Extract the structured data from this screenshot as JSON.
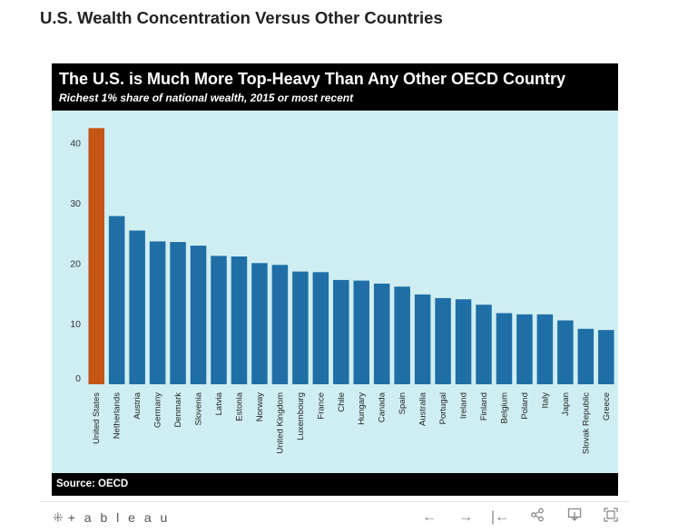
{
  "page_heading": "U.S. Wealth Concentration Versus Other Countries",
  "viz": {
    "title": "The U.S. is Much More Top-Heavy Than Any Other OECD Country",
    "subtitle": "Richest 1% share of national wealth, 2015 or most recent",
    "source": "Source: OECD"
  },
  "toolbar": {
    "logo": "+ a b l e a u",
    "logo_plus": "⁜",
    "icons": [
      "tableau-logo-icon",
      "undo-icon",
      "redo-icon",
      "revert-icon",
      "share-icon",
      "download-icon",
      "fullscreen-icon"
    ]
  },
  "colors": {
    "background": "#cfeef2",
    "bar": "#1f6fa6",
    "highlight": "#c45514",
    "header": "#000000"
  },
  "chart_data": {
    "type": "bar",
    "title": "The U.S. is Much More Top-Heavy Than Any Other OECD Country",
    "subtitle": "Richest 1% share of national wealth, 2015 or most recent",
    "xlabel": "",
    "ylabel": "",
    "ylim": [
      0,
      43
    ],
    "yticks": [
      0,
      10,
      20,
      30,
      40
    ],
    "grid": false,
    "categories": [
      "United States",
      "Netherlands",
      "Austria",
      "Germany",
      "Denmark",
      "Slovenia",
      "Latvia",
      "Estonia",
      "Norway",
      "United Kingdom",
      "Luxembourg",
      "France",
      "Chile",
      "Hungary",
      "Canada",
      "Spain",
      "Australia",
      "Portugal",
      "Ireland",
      "Finland",
      "Belgium",
      "Poland",
      "Italy",
      "Japan",
      "Slovak Republic",
      "Greece"
    ],
    "values": [
      42.5,
      27.9,
      25.5,
      23.7,
      23.6,
      23.0,
      21.3,
      21.2,
      20.1,
      19.8,
      18.7,
      18.6,
      17.3,
      17.2,
      16.7,
      16.2,
      14.9,
      14.3,
      14.1,
      13.2,
      11.8,
      11.6,
      11.6,
      10.6,
      9.2,
      9.0
    ],
    "highlight": "United States"
  }
}
